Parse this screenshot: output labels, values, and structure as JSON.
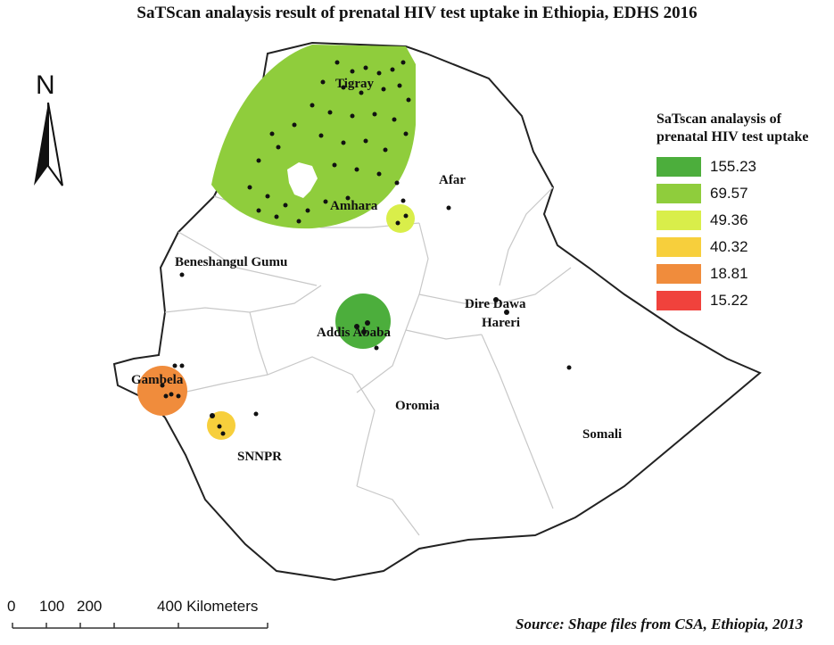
{
  "title": "SaTScan analaysis result of prenatal HIV test uptake in Ethiopia, EDHS 2016",
  "north_label": "N",
  "legend": {
    "title_line1": "SaTscan analaysis of",
    "title_line2": "prenatal HIV test uptake",
    "items": [
      {
        "label": "155.23",
        "color": "#4cae3c"
      },
      {
        "label": "69.57",
        "color": "#8fcd3c"
      },
      {
        "label": "49.36",
        "color": "#d9ee4a"
      },
      {
        "label": "40.32",
        "color": "#f7cf3c"
      },
      {
        "label": "18.81",
        "color": "#f08c3c"
      },
      {
        "label": "15.22",
        "color": "#f0423c"
      }
    ]
  },
  "regions": {
    "tigray": "Tigray",
    "afar": "Afar",
    "amhara": "Amhara",
    "beneshangul": "Beneshangul Gumu",
    "dire_dawa": "Dire Dawa",
    "hareri": "Hareri",
    "addis_ababa": "Addis Ababa",
    "gambela": "Gambela",
    "oromia": "Oromia",
    "somali": "Somali",
    "snnpr": "SNNPR"
  },
  "scale": {
    "tick_0": "0",
    "tick_100": "100",
    "tick_200": "200",
    "tick_400": "400 Kilometers"
  },
  "source": "Source: Shape files from CSA, Ethiopia, 2013"
}
